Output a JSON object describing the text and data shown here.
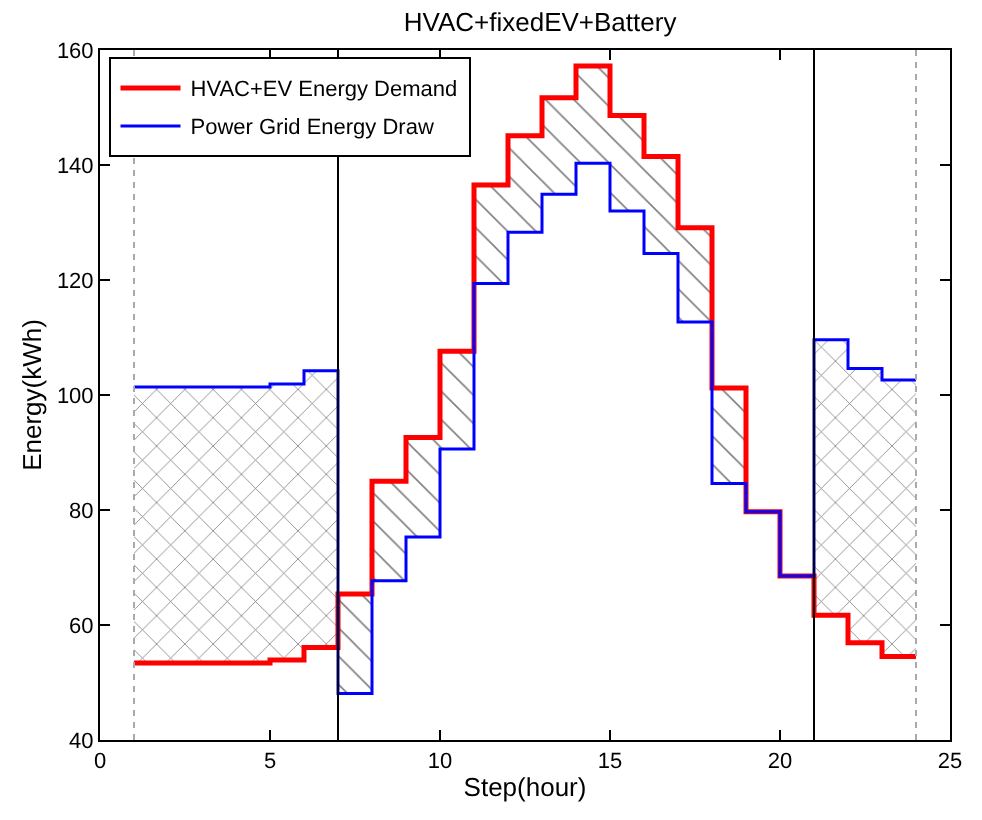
{
  "chart_data": {
    "type": "step",
    "title": "HVAC+fixedEV+Battery",
    "xlabel": "Step(hour)",
    "ylabel": "Energy(kWh)",
    "x": [
      1,
      2,
      3,
      4,
      5,
      6,
      7,
      8,
      9,
      10,
      11,
      12,
      13,
      14,
      15,
      16,
      17,
      18,
      19,
      20,
      21,
      22,
      23,
      24
    ],
    "series": [
      {
        "name": "HVAC+EV Energy Demand",
        "color": "#ff0000",
        "values": [
          53.4,
          53.4,
          53.4,
          53.4,
          53.9,
          56.1,
          65.4,
          85.0,
          92.6,
          107.6,
          136.5,
          145.1,
          151.7,
          157.2,
          148.6,
          141.5,
          129.1,
          101.2,
          79.7,
          68.5,
          61.7,
          56.9,
          54.5,
          54.5
        ],
        "lower": [
          null,
          null,
          null,
          null,
          null,
          null,
          48.1,
          67.7,
          75.3,
          90.6,
          119.4,
          128.3,
          134.9,
          140.3,
          132.0,
          124.6,
          112.7,
          84.6,
          79.7,
          null,
          null,
          null,
          null,
          null
        ],
        "upper": [
          null,
          null,
          null,
          null,
          null,
          null,
          65.4,
          85.0,
          92.6,
          107.6,
          136.5,
          145.1,
          151.7,
          157.2,
          148.6,
          141.5,
          129.1,
          101.2,
          79.7,
          null,
          null,
          null,
          null,
          null
        ]
      },
      {
        "name": "Power Grid Energy Draw",
        "color": "#0000ff",
        "values": [
          101.4,
          101.4,
          101.4,
          101.4,
          101.9,
          104.2,
          48.1,
          67.7,
          75.3,
          90.6,
          119.4,
          128.3,
          134.9,
          140.3,
          132.0,
          124.6,
          112.7,
          84.6,
          79.7,
          68.5,
          109.6,
          104.6,
          102.6,
          102.6
        ],
        "lower": [
          53.4,
          53.4,
          53.4,
          53.4,
          53.9,
          56.1,
          null,
          null,
          null,
          null,
          null,
          null,
          null,
          null,
          null,
          null,
          null,
          null,
          null,
          null,
          61.7,
          56.9,
          54.5,
          54.5
        ],
        "upper": [
          101.4,
          101.4,
          101.4,
          101.4,
          101.9,
          104.2,
          null,
          null,
          null,
          null,
          null,
          null,
          null,
          null,
          null,
          null,
          null,
          null,
          null,
          null,
          109.6,
          104.6,
          102.6,
          102.6
        ]
      }
    ],
    "xlim": [
      0,
      25
    ],
    "xticks": [
      0,
      5,
      10,
      15,
      20,
      25
    ],
    "ylim": [
      40,
      160
    ],
    "yticks": [
      40,
      60,
      80,
      100,
      120,
      140,
      160
    ],
    "ref_lines": [
      {
        "axis": "x",
        "value": 7,
        "color": "#000000",
        "line_style": "solid"
      },
      {
        "axis": "x",
        "value": 21,
        "color": "#000000",
        "line_style": "solid"
      },
      {
        "axis": "x",
        "value": 1,
        "color": "#aaaaaa",
        "line_style": "dotted"
      },
      {
        "axis": "x",
        "value": 24,
        "color": "#aaaaaa",
        "line_style": "dotted"
      }
    ],
    "legend": "top left"
  }
}
